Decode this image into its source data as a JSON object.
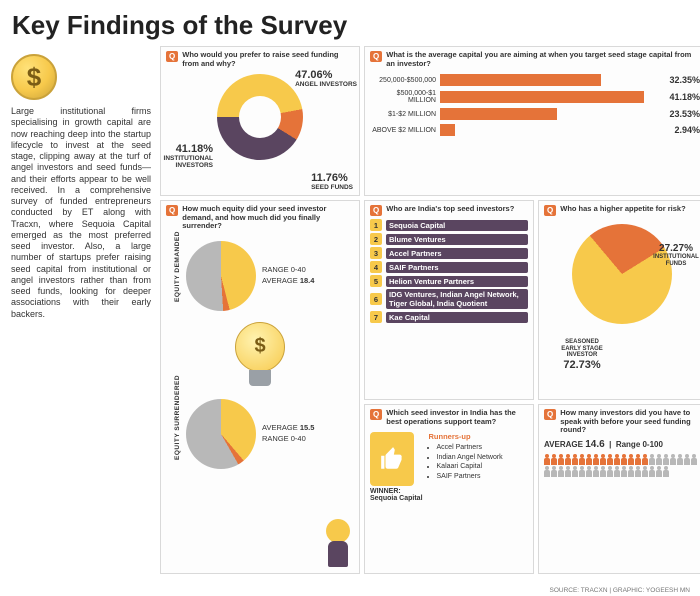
{
  "page": {
    "title": "Key Findings of the Survey",
    "body_text": "Large institutional firms specialising in growth capital are now reaching deep into the startup lifecycle to invest at the seed stage, clipping away at the turf of angel investors and seed funds—and their efforts appear to be well received. In a comprehensive survey of funded entrepreneurs conducted by ET along with Tracxn, where Sequoia Capital emerged as the most preferred seed investor. Also, a large number of startups prefer raising seed capital from institutional or angel investors rather than from seed funds, looking for deeper associations with their early backers.",
    "source": "SOURCE: TRACXN | GRAPHIC: YOGEESH MN",
    "q_label": "Q"
  },
  "colors": {
    "orange": "#e57339",
    "yellow": "#f7c94b",
    "plum": "#5a4560",
    "grey": "#b8b8b8",
    "lightgrey": "#dddddd",
    "panel_border": "#d9d9d9"
  },
  "donut_chart": {
    "question": "Who would you prefer to raise seed funding from and why?",
    "slices": [
      {
        "label": "ANGEL INVESTORS",
        "pct": 47.06,
        "color": "#f7c94b"
      },
      {
        "label": "SEED FUNDS",
        "pct": 11.76,
        "color": "#e57339"
      },
      {
        "label": "INSTITUTIONAL INVESTORS",
        "pct": 41.18,
        "color": "#5a4560"
      }
    ],
    "pct_suffix": "%"
  },
  "bar_chart": {
    "question": "What is the average capital you are aiming at when you target seed stage capital from an investor?",
    "rows": [
      {
        "label": "250,000-$500,000",
        "pct": 32.35
      },
      {
        "label": "$500,000-$1 MILLION",
        "pct": 41.18
      },
      {
        "label": "$1-$2 MILLION",
        "pct": 23.53
      },
      {
        "label": "ABOVE $2 MILLION",
        "pct": 2.94
      }
    ],
    "bar_color": "#e57339",
    "max_pct": 45,
    "pct_suffix": "%"
  },
  "top_investors": {
    "question": "Who are India's top seed investors?",
    "items": [
      "Sequoia Capital",
      "Blume Ventures",
      "Accel Partners",
      "SAIF Partners",
      "Helion Venture Partners",
      "IDG Ventures, Indian Angel Network, Tiger Global, India Quotient",
      "Kae Capital"
    ]
  },
  "risk_pie": {
    "question": "Who has a higher appetite for risk?",
    "slices": [
      {
        "label": "INSTITUTIONAL FUNDS",
        "pct": 27.27,
        "color": "#e57339"
      },
      {
        "label": "SEASONED EARLY STAGE INVESTOR",
        "pct": 72.73,
        "color": "#f7c94b"
      }
    ],
    "pct_suffix": "%"
  },
  "equity": {
    "question": "How much equity did your seed investor demand, and how much did you finally surrender?",
    "demanded": {
      "title": "EQUITY DEMANDED",
      "range": "RANGE 0-40",
      "average_label": "AVERAGE",
      "average": 18.4,
      "colors": {
        "main": "#b8b8b8",
        "slice": "#f7c94b",
        "accent": "#e57339"
      }
    },
    "surrendered": {
      "title": "EQUITY SURRENDERED",
      "range": "RANGE 0-40",
      "average_label": "AVERAGE",
      "average": 15.5,
      "colors": {
        "main": "#b8b8b8",
        "slice": "#f7c94b",
        "accent": "#e57339"
      }
    }
  },
  "best_ops": {
    "question": "Which seed investor in India has the best operations support team?",
    "winner_label": "WINNER:",
    "winner": "Sequoia Capital",
    "runners_label": "Runners-up",
    "runners": [
      "Accel Partners",
      "Indian Angel Network",
      "Kalaari Capital",
      "SAIF Partners"
    ]
  },
  "speak_count": {
    "question": "How many investors did you have to speak with before your seed funding round?",
    "average_label": "AVERAGE",
    "average": 14.6,
    "range_label": "Range 0-100",
    "people_total": 40,
    "people_colored": 15
  }
}
